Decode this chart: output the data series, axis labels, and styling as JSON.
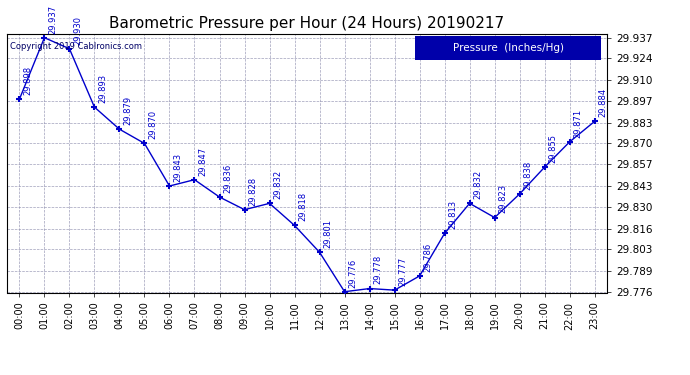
{
  "title": "Barometric Pressure per Hour (24 Hours) 20190217",
  "copyright": "Copyright 2019 Cablronics.com",
  "legend_label": "Pressure  (Inches/Hg)",
  "hours": [
    0,
    1,
    2,
    3,
    4,
    5,
    6,
    7,
    8,
    9,
    10,
    11,
    12,
    13,
    14,
    15,
    16,
    17,
    18,
    19,
    20,
    21,
    22,
    23
  ],
  "values": [
    29.898,
    29.937,
    29.93,
    29.893,
    29.879,
    29.87,
    29.843,
    29.847,
    29.836,
    29.828,
    29.832,
    29.818,
    29.801,
    29.776,
    29.778,
    29.777,
    29.786,
    29.813,
    29.832,
    29.823,
    29.838,
    29.855,
    29.871,
    29.884
  ],
  "xlabels": [
    "00:00",
    "01:00",
    "02:00",
    "03:00",
    "04:00",
    "05:00",
    "06:00",
    "07:00",
    "08:00",
    "09:00",
    "10:00",
    "11:00",
    "12:00",
    "13:00",
    "14:00",
    "15:00",
    "16:00",
    "17:00",
    "18:00",
    "19:00",
    "20:00",
    "21:00",
    "22:00",
    "23:00"
  ],
  "ylim_min": 29.7755,
  "ylim_max": 29.9395,
  "yticks": [
    29.776,
    29.789,
    29.803,
    29.816,
    29.83,
    29.843,
    29.857,
    29.87,
    29.883,
    29.897,
    29.91,
    29.924,
    29.937
  ],
  "line_color": "#0000CC",
  "marker": "+",
  "bg_color": "#ffffff",
  "grid_color": "#8888aa",
  "title_color": "#000000",
  "label_color": "#0000CC",
  "copyright_color": "#000066",
  "legend_bg": "#0000AA",
  "legend_fg": "#ffffff",
  "figwidth": 6.9,
  "figheight": 3.75,
  "dpi": 100
}
